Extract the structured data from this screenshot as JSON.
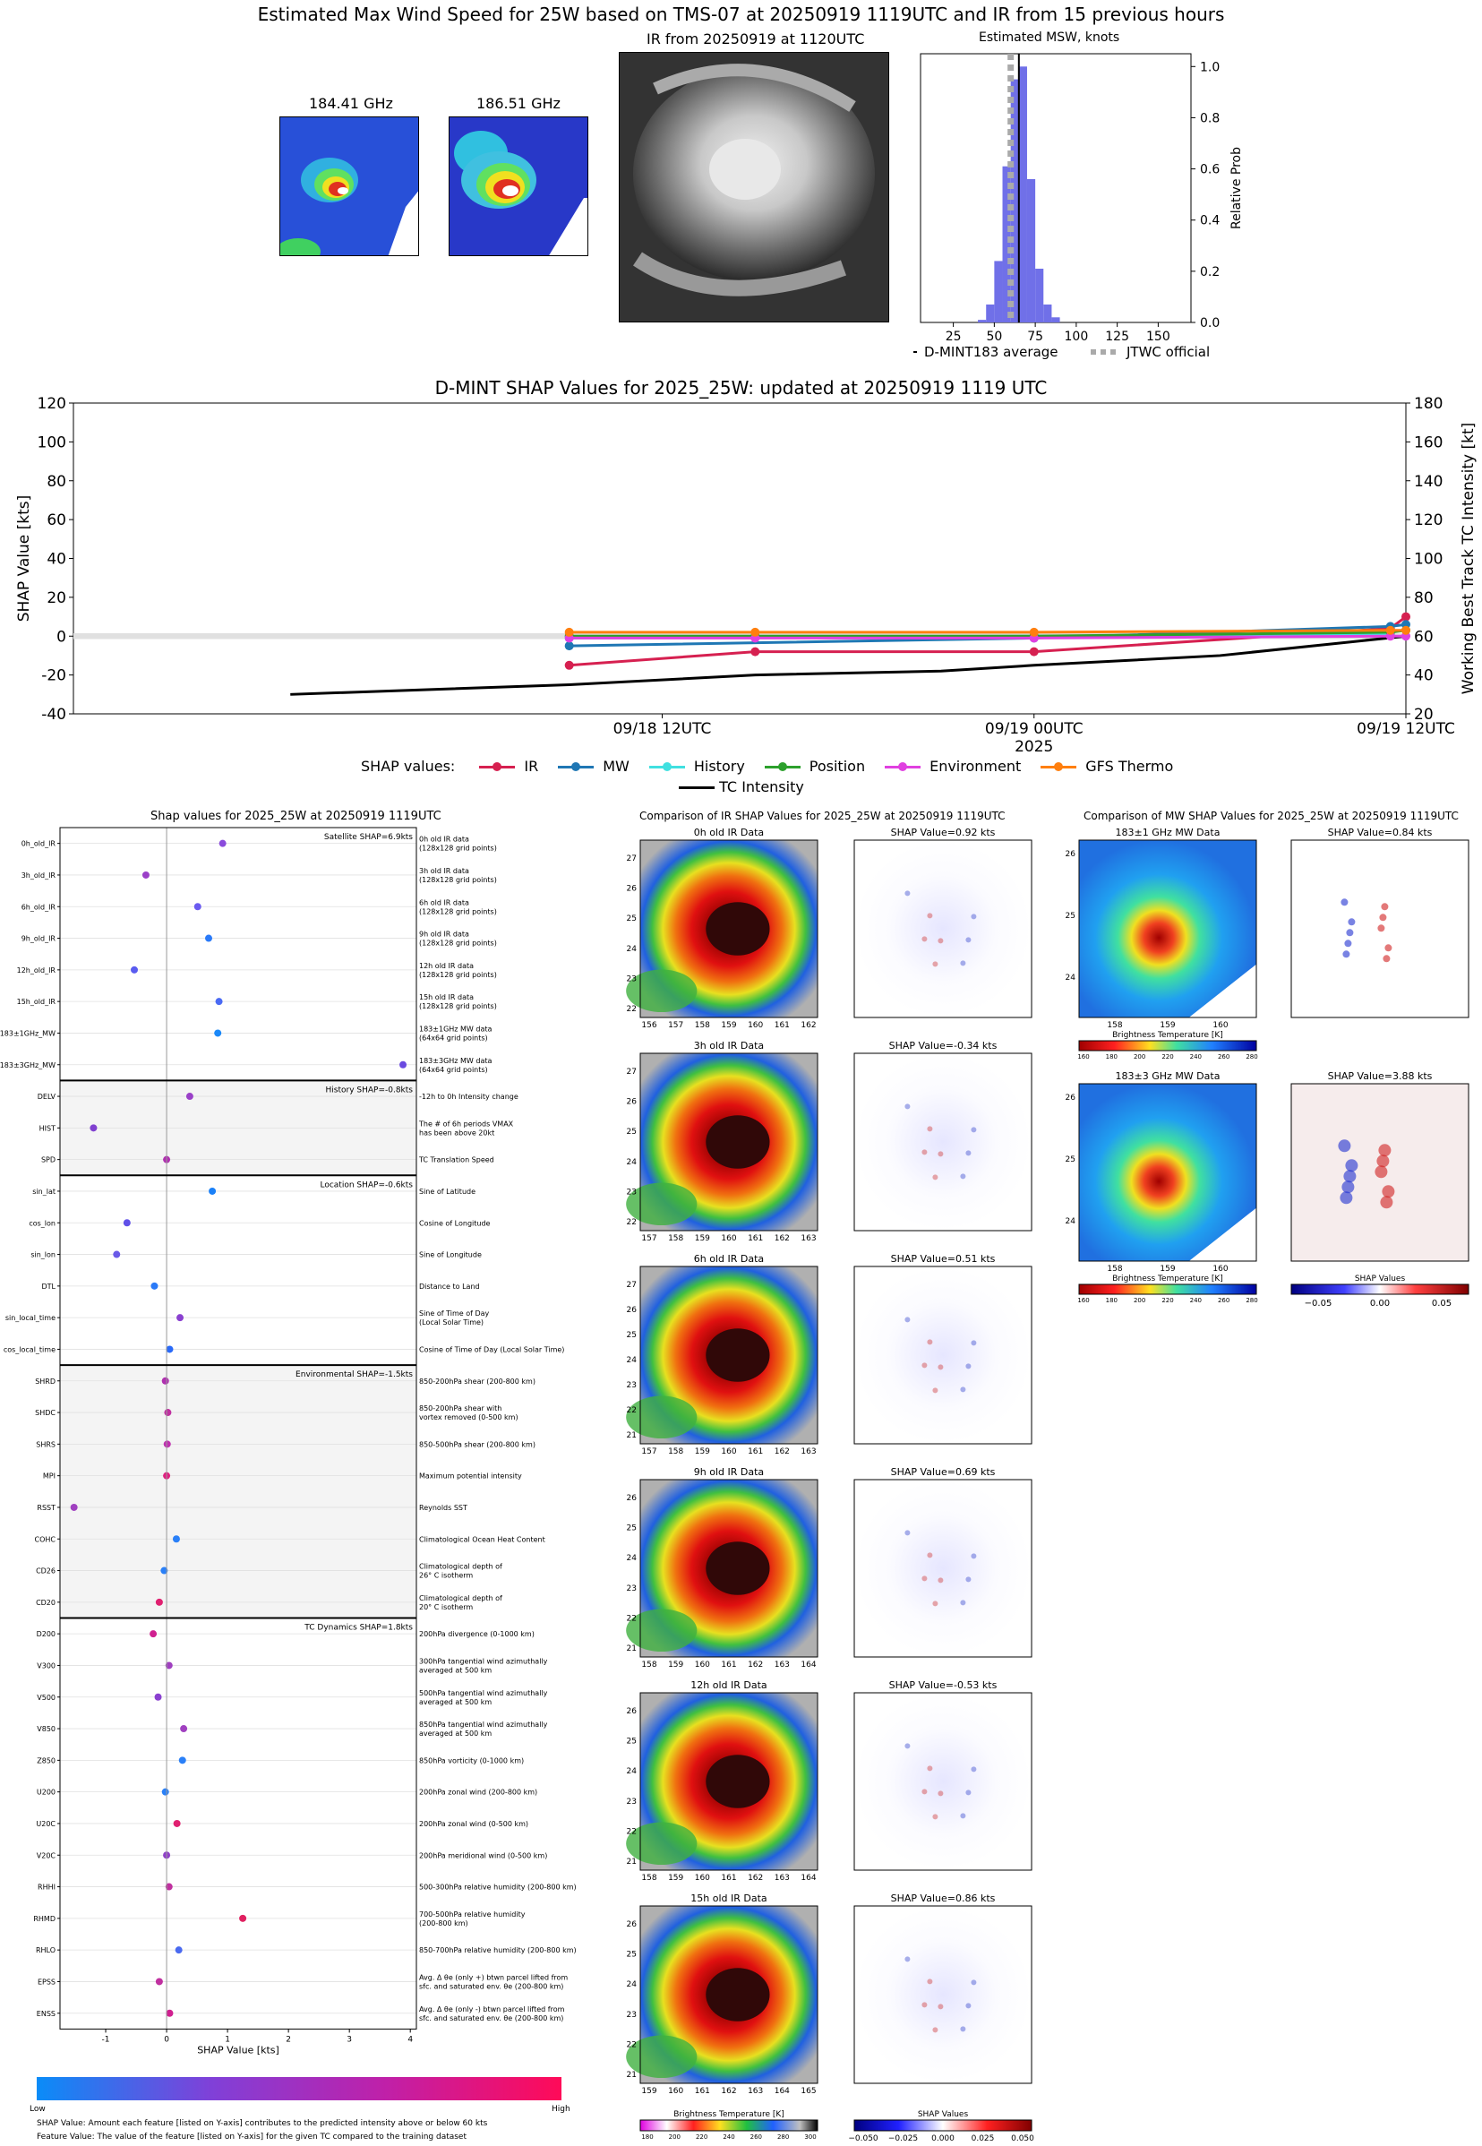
{
  "header": {
    "title": "Estimated Max Wind Speed for 25W based on TMS-07 at 20250919 1119UTC and IR from 15 previous hours",
    "mw_panels": [
      {
        "label": "184.41 GHz"
      },
      {
        "label": "186.51 GHz"
      }
    ],
    "ir_panel_title": "IR from 20250919 at 1120UTC"
  },
  "msw_hist": {
    "title": "Estimated MSW, knots",
    "ylabel": "Relative Prob",
    "legend": {
      "dmint": "D-MINT183 average",
      "jtwc": "JTWC official"
    },
    "x_ticks": [
      "25",
      "50",
      "75",
      "100",
      "125",
      "150"
    ],
    "y_ticks": [
      "0.0",
      "0.2",
      "0.4",
      "0.6",
      "0.8",
      "1.0"
    ]
  },
  "shap_time": {
    "title": "D-MINT SHAP Values for 2025_25W: updated at 20250919 1119 UTC",
    "ylabel_left": "SHAP Value [kts]",
    "ylabel_right": "Working Best Track TC Intensity [kt]",
    "left_ticks": [
      "120",
      "100",
      "80",
      "60",
      "40",
      "20",
      "0",
      "-20",
      "-40"
    ],
    "right_ticks": [
      "180",
      "160",
      "140",
      "120",
      "100",
      "80",
      "60",
      "40",
      "20"
    ],
    "x_ticks": [
      "09/18 12UTC",
      "09/19 00UTC",
      "09/19 12UTC"
    ],
    "x_year": "2025",
    "legend_title": "SHAP values:",
    "legend_items": [
      "IR",
      "MW",
      "History",
      "Position",
      "Environment",
      "GFS Thermo"
    ],
    "legend_tc": "TC Intensity"
  },
  "chart_data": [
    {
      "type": "histogram",
      "title": "Estimated MSW, knots",
      "xlabel": "",
      "ylabel": "Relative Prob",
      "xlim": [
        5,
        170
      ],
      "ylim": [
        0,
        1.05
      ],
      "bin_width": 5,
      "bins_left": [
        40,
        45,
        50,
        55,
        60,
        65,
        70,
        75,
        80,
        85
      ],
      "values": [
        0.01,
        0.07,
        0.24,
        0.61,
        0.95,
        1.0,
        0.56,
        0.21,
        0.07,
        0.02
      ],
      "dmint_average": 65,
      "jtwc_official": 60
    },
    {
      "type": "line",
      "title": "D-MINT SHAP Values for 2025_25W: updated at 20250919 1119 UTC",
      "xlabel": "2025",
      "ylabel": "SHAP Value [kts]",
      "ylim": [
        -40,
        120
      ],
      "y2lim": [
        20,
        180
      ],
      "x_hours": [
        -24,
        12
      ],
      "series": [
        {
          "name": "IR",
          "color": "#d62050",
          "x": [
            -15,
            -9,
            0,
            11.5,
            12
          ],
          "values": [
            -15,
            -8,
            -8,
            4,
            10
          ]
        },
        {
          "name": "MW",
          "color": "#1f77b4",
          "x": [
            -15,
            0,
            11.5,
            12
          ],
          "values": [
            -5,
            -1,
            5,
            6
          ]
        },
        {
          "name": "History",
          "color": "#40e0e0",
          "x": [
            -15,
            0,
            11.5
          ],
          "values": [
            -1,
            0,
            1
          ]
        },
        {
          "name": "Position",
          "color": "#2ca02c",
          "x": [
            -15,
            -9,
            0,
            11.5,
            12
          ],
          "values": [
            0,
            0,
            0,
            2,
            3
          ]
        },
        {
          "name": "Environment",
          "color": "#e040e0",
          "x": [
            -15,
            -9,
            0,
            11.5,
            12
          ],
          "values": [
            -1,
            -1,
            -1,
            0,
            0
          ]
        },
        {
          "name": "GFS Thermo",
          "color": "#ff7f0e",
          "x": [
            -15,
            -9,
            0,
            11.5,
            12
          ],
          "values": [
            2,
            2,
            2,
            3,
            3
          ]
        }
      ],
      "tc_intensity": {
        "x": [
          -24,
          -15,
          -9,
          -3,
          0,
          6,
          12
        ],
        "values": [
          30,
          35,
          40,
          42,
          45,
          50,
          60
        ]
      }
    },
    {
      "type": "scatter",
      "title": "Shap values for 2025_25W at 20250919 1119UTC",
      "xlabel": "SHAP Value [kts]",
      "xlim": [
        -1.75,
        4.1
      ],
      "x_ticks": [
        -1,
        0,
        1,
        2,
        3,
        4
      ],
      "features": [
        {
          "name": "0h_old_IR",
          "desc": "0h old IR data\n(128x128 grid points)",
          "shap": 0.92,
          "color": "#8a4bdc"
        },
        {
          "name": "3h_old_IR",
          "desc": "3h old IR data\n(128x128 grid points)",
          "shap": -0.34,
          "color": "#9b40c8"
        },
        {
          "name": "6h_old_IR",
          "desc": "6h old IR data\n(128x128 grid points)",
          "shap": 0.51,
          "color": "#6a5af0"
        },
        {
          "name": "9h_old_IR",
          "desc": "9h old IR data\n(128x128 grid points)",
          "shap": 0.69,
          "color": "#2a7af8"
        },
        {
          "name": "12h_old_IR",
          "desc": "12h old IR data\n(128x128 grid points)",
          "shap": -0.53,
          "color": "#5a5cf0"
        },
        {
          "name": "15h_old_IR",
          "desc": "15h old IR data\n(128x128 grid points)",
          "shap": 0.86,
          "color": "#4a6af4"
        },
        {
          "name": "183±1GHz_MW",
          "desc": "183±1GHz MW data\n(64x64 grid points)",
          "shap": 0.84,
          "color": "#1a88f8"
        },
        {
          "name": "183±3GHz_MW",
          "desc": "183±3GHz MW data\n(64x64 grid points)",
          "shap": 3.88,
          "color": "#6a4ae0"
        },
        {
          "name": "DELV",
          "desc": "-12h to 0h Intensity change",
          "shap": 0.38,
          "color": "#9a40c8"
        },
        {
          "name": "HIST",
          "desc": "The # of 6h periods VMAX\nhas been above 20kt",
          "shap": -1.2,
          "color": "#8040d0"
        },
        {
          "name": "SPD",
          "desc": "TC Translation Speed",
          "shap": 0.0,
          "color": "#b030b0"
        },
        {
          "name": "sin_lat",
          "desc": "Sine of Latitude",
          "shap": 0.75,
          "color": "#1a80f8"
        },
        {
          "name": "cos_lon",
          "desc": "Cosine of Longitude",
          "shap": -0.65,
          "color": "#6050e8"
        },
        {
          "name": "sin_lon",
          "desc": "Sine of Longitude",
          "shap": -0.82,
          "color": "#6a5ae8"
        },
        {
          "name": "DTL",
          "desc": "Distance to Land",
          "shap": -0.2,
          "color": "#2a7af8"
        },
        {
          "name": "sin_local_time",
          "desc": "Sine of Time of Day\n(Local Solar Time)",
          "shap": 0.22,
          "color": "#8a40d0"
        },
        {
          "name": "cos_local_time",
          "desc": "Cosine of Time of Day (Local Solar Time)",
          "shap": 0.05,
          "color": "#2a6af8"
        },
        {
          "name": "SHRD",
          "desc": "850-200hPa shear (200-800 km)",
          "shap": -0.02,
          "color": "#b030b0"
        },
        {
          "name": "SHDC",
          "desc": "850-200hPa shear with\nvortex removed (0-500 km)",
          "shap": 0.02,
          "color": "#c030a0"
        },
        {
          "name": "SHRS",
          "desc": "850-500hPa shear (200-800 km)",
          "shap": 0.01,
          "color": "#c030b0"
        },
        {
          "name": "MPI",
          "desc": "Maximum potential intensity",
          "shap": 0.0,
          "color": "#e02080"
        },
        {
          "name": "RSST",
          "desc": "Reynolds SST",
          "shap": -1.52,
          "color": "#a040c0"
        },
        {
          "name": "COHC",
          "desc": "Climatological Ocean Heat Content",
          "shap": 0.16,
          "color": "#2a80f8"
        },
        {
          "name": "CD26",
          "desc": "Climatological depth of\n26° C isotherm",
          "shap": -0.04,
          "color": "#2a80f8"
        },
        {
          "name": "CD20",
          "desc": "Climatological depth of\n20° C isotherm",
          "shap": -0.12,
          "color": "#e02070"
        },
        {
          "name": "D200",
          "desc": "200hPa divergence (0-1000 km)",
          "shap": -0.22,
          "color": "#d02090"
        },
        {
          "name": "V300",
          "desc": "300hPa tangential wind azimuthally\naveraged at 500 km",
          "shap": 0.04,
          "color": "#a040c0"
        },
        {
          "name": "V500",
          "desc": "500hPa tangential wind azimuthally\naveraged at 500 km",
          "shap": -0.14,
          "color": "#8a40d0"
        },
        {
          "name": "V850",
          "desc": "850hPa tangential wind azimuthally\naveraged at 500 km",
          "shap": 0.28,
          "color": "#a040c0"
        },
        {
          "name": "Z850",
          "desc": "850hPa vorticity (0-1000 km)",
          "shap": 0.26,
          "color": "#2a80f8"
        },
        {
          "name": "U200",
          "desc": "200hPa zonal wind (200-800 km)",
          "shap": -0.02,
          "color": "#2a80f8"
        },
        {
          "name": "U20C",
          "desc": "200hPa zonal wind (0-500 km)",
          "shap": 0.17,
          "color": "#e02070"
        },
        {
          "name": "V20C",
          "desc": "200hPa meridional wind (0-500 km)",
          "shap": 0.0,
          "color": "#9040c8"
        },
        {
          "name": "RHHI",
          "desc": "500-300hPa relative humidity (200-800 km)",
          "shap": 0.04,
          "color": "#c030a0"
        },
        {
          "name": "RHMD",
          "desc": "700-500hPa relative humidity\n(200-800 km)",
          "shap": 1.25,
          "color": "#e02060"
        },
        {
          "name": "RHLO",
          "desc": "850-700hPa relative humidity (200-800 km)",
          "shap": 0.2,
          "color": "#4a6af0"
        },
        {
          "name": "EPSS",
          "desc": "Avg. Δ θe (only +) btwn parcel lifted from\nsfc. and saturated env. θe (200-800 km)",
          "shap": -0.12,
          "color": "#c030a0"
        },
        {
          "name": "ENSS",
          "desc": "Avg. Δ θe (only -) btwn parcel lifted from\nsfc. and saturated env. θe (200-800 km)",
          "shap": 0.05,
          "color": "#d02090"
        }
      ],
      "groups": [
        {
          "label": "Satellite SHAP=6.9kts",
          "start": 0,
          "end": 7,
          "shaded": false
        },
        {
          "label": "History SHAP=-0.8kts",
          "start": 8,
          "end": 10,
          "shaded": true
        },
        {
          "label": "Location SHAP=-0.6kts",
          "start": 11,
          "end": 16,
          "shaded": false
        },
        {
          "label": "Environmental SHAP=-1.5kts",
          "start": 17,
          "end": 24,
          "shaded": true
        },
        {
          "label": "TC Dynamics SHAP=1.8kts",
          "start": 25,
          "end": 37,
          "shaded": false
        }
      ]
    }
  ],
  "feature_panel": {
    "title": "Shap values for 2025_25W at 20250919 1119UTC",
    "xlabel": "SHAP Value [kts]",
    "colorbar_low": "Low",
    "colorbar_high": "High",
    "footnote1": "SHAP Value: Amount each feature [listed on Y-axis] contributes to the predicted intensity above or below 60 kts",
    "footnote2": "Feature Value: The value of the feature [listed on Y-axis] for the given TC compared to the training dataset"
  },
  "ir_compare": {
    "title": "Comparison of IR SHAP Values for 2025_25W at 20250919 1119UTC",
    "rows": [
      {
        "data_title": "0h old IR Data",
        "shap_title": "SHAP Value=0.92 kts",
        "yticks": [
          "27",
          "26",
          "25",
          "24",
          "23",
          "22"
        ],
        "xticks": [
          "156",
          "157",
          "158",
          "159",
          "160",
          "161",
          "162"
        ]
      },
      {
        "data_title": "3h old IR Data",
        "shap_title": "SHAP Value=-0.34 kts",
        "yticks": [
          "27",
          "26",
          "25",
          "24",
          "23",
          "22"
        ],
        "xticks": [
          "157",
          "158",
          "159",
          "160",
          "161",
          "162",
          "163"
        ]
      },
      {
        "data_title": "6h old IR Data",
        "shap_title": "SHAP Value=0.51 kts",
        "yticks": [
          "27",
          "26",
          "25",
          "24",
          "23",
          "22",
          "21"
        ],
        "xticks": [
          "157",
          "158",
          "159",
          "160",
          "161",
          "162",
          "163"
        ]
      },
      {
        "data_title": "9h old IR Data",
        "shap_title": "SHAP Value=0.69 kts",
        "yticks": [
          "26",
          "25",
          "24",
          "23",
          "22",
          "21"
        ],
        "xticks": [
          "158",
          "159",
          "160",
          "161",
          "162",
          "163",
          "164"
        ]
      },
      {
        "data_title": "12h old IR Data",
        "shap_title": "SHAP Value=-0.53 kts",
        "yticks": [
          "26",
          "25",
          "24",
          "23",
          "22",
          "21"
        ],
        "xticks": [
          "158",
          "159",
          "160",
          "161",
          "162",
          "163",
          "164"
        ]
      },
      {
        "data_title": "15h old IR Data",
        "shap_title": "SHAP Value=0.86 kts",
        "yticks": [
          "26",
          "25",
          "24",
          "23",
          "22",
          "21"
        ],
        "xticks": [
          "159",
          "160",
          "161",
          "162",
          "163",
          "164",
          "165"
        ]
      }
    ],
    "cbar_label": "Brightness Temperature [K]",
    "cbar_ticks": [
      "180",
      "200",
      "220",
      "240",
      "260",
      "280",
      "300"
    ],
    "shap_cbar_label": "SHAP Values",
    "shap_cbar_ticks": [
      "−0.050",
      "−0.025",
      "0.000",
      "0.025",
      "0.050"
    ]
  },
  "mw_compare": {
    "title": "Comparison of MW SHAP Values for 2025_25W at 20250919 1119UTC",
    "rows": [
      {
        "data_title": "183±1 GHz MW Data",
        "shap_title": "SHAP Value=0.84 kts",
        "yticks": [
          "26",
          "25",
          "24"
        ],
        "xticks": [
          "158",
          "159",
          "160"
        ]
      },
      {
        "data_title": "183±3 GHz MW Data",
        "shap_title": "SHAP Value=3.88 kts",
        "yticks": [
          "26",
          "25",
          "24"
        ],
        "xticks": [
          "158",
          "159",
          "160"
        ]
      }
    ],
    "cbar_label": "Brightness Temperature [K]",
    "cbar_ticks": [
      "160",
      "180",
      "200",
      "220",
      "240",
      "260",
      "280"
    ],
    "shap_cbar_label": "SHAP Values",
    "shap_cbar_ticks": [
      "−0.05",
      "0.00",
      "0.05"
    ]
  }
}
